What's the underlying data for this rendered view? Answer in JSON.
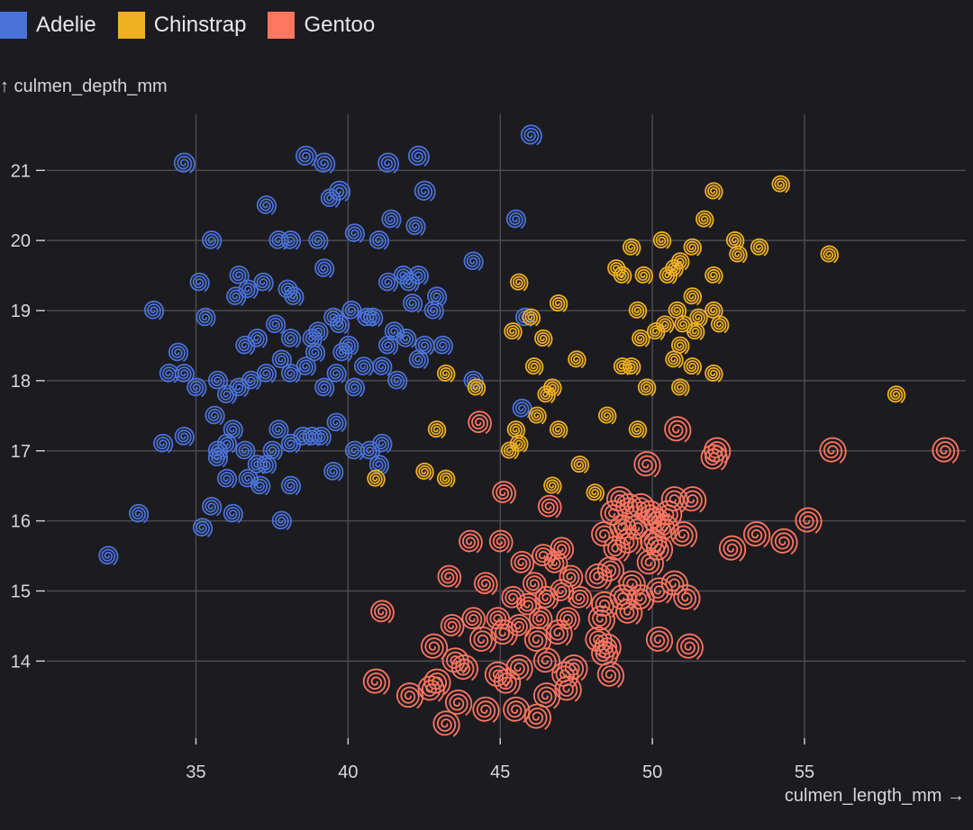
{
  "legend": {
    "position": "top-left"
  },
  "chart_data": {
    "type": "scatter",
    "grid": true,
    "title": "",
    "xlabel": "culmen_length_mm →",
    "ylabel": "↑ culmen_depth_mm",
    "xlim": [
      30.1,
      60.3
    ],
    "ylim": [
      12.9,
      21.8
    ],
    "xticks": [
      "35",
      "40",
      "45",
      "50",
      "55"
    ],
    "yticks": [
      "21",
      "20",
      "19",
      "18",
      "17",
      "16",
      "15",
      "14"
    ],
    "series": [
      {
        "name": "Adelie",
        "color": "#4a72d8",
        "points": [
          [
            34.6,
            21.1
          ],
          [
            38.6,
            21.2
          ],
          [
            39.2,
            21.1
          ],
          [
            41.3,
            21.1
          ],
          [
            42.3,
            21.2
          ],
          [
            42.5,
            20.7
          ],
          [
            39.7,
            20.7
          ],
          [
            39.4,
            20.6
          ],
          [
            37.3,
            20.5
          ],
          [
            35.5,
            20.0
          ],
          [
            37.7,
            20.0
          ],
          [
            38.1,
            20.0
          ],
          [
            39.0,
            20.0
          ],
          [
            40.2,
            20.1
          ],
          [
            41.0,
            20.0
          ],
          [
            41.4,
            20.3
          ],
          [
            42.2,
            20.2
          ],
          [
            39.2,
            19.6
          ],
          [
            44.1,
            19.7
          ],
          [
            46.0,
            21.5
          ],
          [
            45.5,
            20.3
          ],
          [
            35.1,
            19.4
          ],
          [
            36.3,
            19.2
          ],
          [
            36.7,
            19.3
          ],
          [
            36.4,
            19.5
          ],
          [
            37.2,
            19.4
          ],
          [
            38.0,
            19.3
          ],
          [
            38.2,
            19.2
          ],
          [
            41.3,
            19.4
          ],
          [
            41.8,
            19.5
          ],
          [
            42.3,
            19.5
          ],
          [
            42.0,
            19.4
          ],
          [
            33.6,
            19.0
          ],
          [
            35.3,
            18.9
          ],
          [
            37.6,
            18.8
          ],
          [
            38.1,
            18.6
          ],
          [
            38.8,
            18.6
          ],
          [
            39.5,
            18.9
          ],
          [
            39.7,
            18.8
          ],
          [
            40.1,
            19.0
          ],
          [
            40.6,
            18.9
          ],
          [
            40.8,
            18.9
          ],
          [
            41.5,
            18.7
          ],
          [
            41.9,
            18.6
          ],
          [
            42.1,
            19.1
          ],
          [
            42.8,
            19.0
          ],
          [
            42.9,
            19.2
          ],
          [
            36.6,
            18.5
          ],
          [
            37.0,
            18.6
          ],
          [
            37.8,
            18.3
          ],
          [
            38.9,
            18.4
          ],
          [
            39.0,
            18.7
          ],
          [
            39.8,
            18.4
          ],
          [
            40.0,
            18.5
          ],
          [
            40.5,
            18.2
          ],
          [
            41.1,
            18.2
          ],
          [
            41.3,
            18.5
          ],
          [
            42.5,
            18.5
          ],
          [
            43.1,
            18.5
          ],
          [
            34.4,
            18.4
          ],
          [
            34.1,
            18.1
          ],
          [
            34.6,
            18.1
          ],
          [
            35.0,
            17.9
          ],
          [
            35.7,
            18.0
          ],
          [
            36.0,
            17.8
          ],
          [
            36.4,
            17.9
          ],
          [
            36.8,
            18.0
          ],
          [
            37.3,
            18.1
          ],
          [
            38.1,
            18.1
          ],
          [
            38.6,
            18.2
          ],
          [
            39.2,
            17.9
          ],
          [
            39.6,
            18.1
          ],
          [
            40.2,
            17.9
          ],
          [
            41.6,
            18.0
          ],
          [
            44.1,
            18.0
          ],
          [
            42.3,
            18.3
          ],
          [
            45.7,
            17.6
          ],
          [
            35.6,
            17.5
          ],
          [
            36.2,
            17.3
          ],
          [
            37.7,
            17.3
          ],
          [
            38.5,
            17.2
          ],
          [
            39.1,
            17.2
          ],
          [
            39.6,
            17.4
          ],
          [
            41.1,
            17.1
          ],
          [
            33.9,
            17.1
          ],
          [
            34.6,
            17.2
          ],
          [
            35.7,
            17.0
          ],
          [
            36.0,
            17.1
          ],
          [
            36.6,
            17.0
          ],
          [
            37.5,
            17.0
          ],
          [
            38.1,
            17.1
          ],
          [
            38.8,
            17.2
          ],
          [
            40.2,
            17.0
          ],
          [
            40.7,
            17.0
          ],
          [
            41.0,
            16.8
          ],
          [
            35.7,
            16.9
          ],
          [
            37.0,
            16.8
          ],
          [
            37.3,
            16.8
          ],
          [
            39.5,
            16.7
          ],
          [
            36.0,
            16.6
          ],
          [
            36.7,
            16.6
          ],
          [
            37.1,
            16.5
          ],
          [
            38.1,
            16.5
          ],
          [
            35.5,
            16.2
          ],
          [
            36.2,
            16.1
          ],
          [
            33.1,
            16.1
          ],
          [
            35.2,
            15.9
          ],
          [
            37.8,
            16.0
          ],
          [
            32.1,
            15.5
          ],
          [
            45.8,
            18.9
          ]
        ]
      },
      {
        "name": "Chinstrap",
        "color": "#f0b020",
        "points": [
          [
            54.2,
            20.8
          ],
          [
            52.0,
            20.7
          ],
          [
            51.7,
            20.3
          ],
          [
            52.7,
            20.0
          ],
          [
            53.5,
            19.9
          ],
          [
            52.8,
            19.8
          ],
          [
            50.3,
            20.0
          ],
          [
            49.3,
            19.9
          ],
          [
            51.3,
            19.9
          ],
          [
            55.8,
            19.8
          ],
          [
            48.8,
            19.6
          ],
          [
            49.0,
            19.5
          ],
          [
            49.7,
            19.5
          ],
          [
            50.5,
            19.5
          ],
          [
            50.7,
            19.6
          ],
          [
            50.9,
            19.7
          ],
          [
            52.0,
            19.5
          ],
          [
            45.6,
            19.4
          ],
          [
            46.0,
            18.9
          ],
          [
            46.9,
            19.1
          ],
          [
            49.5,
            19.0
          ],
          [
            50.8,
            19.0
          ],
          [
            51.3,
            19.2
          ],
          [
            51.5,
            18.9
          ],
          [
            52.0,
            19.0
          ],
          [
            46.4,
            18.6
          ],
          [
            45.4,
            18.7
          ],
          [
            50.1,
            18.7
          ],
          [
            50.4,
            18.8
          ],
          [
            51.0,
            18.8
          ],
          [
            51.4,
            18.7
          ],
          [
            52.2,
            18.8
          ],
          [
            49.6,
            18.6
          ],
          [
            50.9,
            18.5
          ],
          [
            50.7,
            18.3
          ],
          [
            47.5,
            18.3
          ],
          [
            46.1,
            18.2
          ],
          [
            49.0,
            18.2
          ],
          [
            49.3,
            18.2
          ],
          [
            51.3,
            18.2
          ],
          [
            52.0,
            18.1
          ],
          [
            43.2,
            18.1
          ],
          [
            44.2,
            17.9
          ],
          [
            46.5,
            17.8
          ],
          [
            46.7,
            17.9
          ],
          [
            49.8,
            17.9
          ],
          [
            50.9,
            17.9
          ],
          [
            58.0,
            17.8
          ],
          [
            46.2,
            17.5
          ],
          [
            48.5,
            17.5
          ],
          [
            45.5,
            17.3
          ],
          [
            49.5,
            17.3
          ],
          [
            42.9,
            17.3
          ],
          [
            46.9,
            17.3
          ],
          [
            45.6,
            17.1
          ],
          [
            45.3,
            17.0
          ],
          [
            47.6,
            16.8
          ],
          [
            42.5,
            16.7
          ],
          [
            43.2,
            16.6
          ],
          [
            40.9,
            16.6
          ],
          [
            46.7,
            16.5
          ],
          [
            48.1,
            16.4
          ]
        ]
      },
      {
        "name": "Gentoo",
        "color": "#ff7661",
        "points": [
          [
            44.3,
            17.4
          ],
          [
            50.8,
            17.3
          ],
          [
            52.1,
            17.0
          ],
          [
            55.9,
            17.0
          ],
          [
            59.6,
            17.0
          ],
          [
            49.8,
            16.8
          ],
          [
            52.0,
            16.9
          ],
          [
            45.1,
            16.4
          ],
          [
            46.6,
            16.2
          ],
          [
            48.7,
            16.1
          ],
          [
            49.2,
            16.2
          ],
          [
            49.6,
            16.2
          ],
          [
            50.1,
            16.0
          ],
          [
            50.7,
            16.3
          ],
          [
            51.3,
            16.3
          ],
          [
            50.4,
            15.9
          ],
          [
            48.4,
            15.8
          ],
          [
            49.0,
            15.9
          ],
          [
            48.8,
            15.6
          ],
          [
            49.2,
            15.7
          ],
          [
            50.2,
            15.6
          ],
          [
            51.0,
            15.8
          ],
          [
            52.6,
            15.6
          ],
          [
            53.4,
            15.8
          ],
          [
            54.3,
            15.7
          ],
          [
            55.1,
            16.0
          ],
          [
            44.0,
            15.7
          ],
          [
            45.0,
            15.7
          ],
          [
            45.7,
            15.4
          ],
          [
            46.4,
            15.5
          ],
          [
            47.0,
            15.6
          ],
          [
            44.5,
            15.1
          ],
          [
            46.1,
            15.1
          ],
          [
            46.8,
            15.4
          ],
          [
            47.3,
            15.2
          ],
          [
            48.2,
            15.2
          ],
          [
            48.6,
            15.3
          ],
          [
            49.3,
            15.1
          ],
          [
            49.9,
            15.4
          ],
          [
            50.2,
            15.0
          ],
          [
            50.7,
            15.1
          ],
          [
            51.1,
            14.9
          ],
          [
            43.3,
            15.2
          ],
          [
            45.4,
            14.9
          ],
          [
            45.9,
            14.8
          ],
          [
            46.5,
            14.9
          ],
          [
            47.0,
            15.0
          ],
          [
            47.6,
            14.9
          ],
          [
            48.4,
            14.8
          ],
          [
            49.0,
            14.9
          ],
          [
            49.6,
            14.9
          ],
          [
            44.1,
            14.6
          ],
          [
            44.9,
            14.6
          ],
          [
            45.6,
            14.5
          ],
          [
            46.3,
            14.6
          ],
          [
            47.2,
            14.6
          ],
          [
            48.3,
            14.6
          ],
          [
            49.2,
            14.7
          ],
          [
            42.8,
            14.2
          ],
          [
            43.4,
            14.5
          ],
          [
            44.4,
            14.3
          ],
          [
            45.1,
            14.4
          ],
          [
            46.2,
            14.3
          ],
          [
            46.9,
            14.4
          ],
          [
            48.2,
            14.3
          ],
          [
            48.5,
            14.2
          ],
          [
            50.2,
            14.3
          ],
          [
            51.2,
            14.2
          ],
          [
            42.9,
            13.7
          ],
          [
            43.5,
            14.0
          ],
          [
            43.8,
            13.9
          ],
          [
            44.9,
            13.8
          ],
          [
            45.2,
            13.7
          ],
          [
            45.6,
            13.9
          ],
          [
            46.5,
            14.0
          ],
          [
            47.4,
            13.9
          ],
          [
            48.4,
            14.1
          ],
          [
            48.6,
            13.8
          ],
          [
            47.1,
            13.8
          ],
          [
            47.2,
            13.6
          ],
          [
            42.0,
            13.5
          ],
          [
            42.7,
            13.6
          ],
          [
            43.6,
            13.4
          ],
          [
            44.5,
            13.3
          ],
          [
            45.5,
            13.3
          ],
          [
            46.5,
            13.5
          ],
          [
            46.2,
            13.2
          ],
          [
            43.2,
            13.1
          ],
          [
            41.1,
            14.7
          ],
          [
            40.9,
            13.7
          ],
          [
            49.9,
            16.1
          ],
          [
            50.5,
            16.1
          ],
          [
            49.5,
            15.9
          ],
          [
            48.9,
            16.3
          ],
          [
            50.0,
            15.7
          ]
        ]
      }
    ]
  }
}
